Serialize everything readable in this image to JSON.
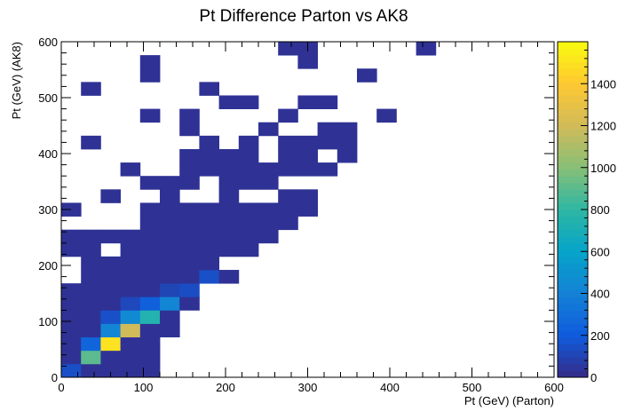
{
  "chart_data": {
    "type": "heatmap",
    "title": "Pt Difference Parton vs AK8",
    "xlabel": "Pt (GeV) (Parton)",
    "ylabel": "Pt (GeV) (AK8)",
    "xlim": [
      0,
      600
    ],
    "ylim": [
      0,
      600
    ],
    "bin_width": 24,
    "x_ticks": [
      "0",
      "100",
      "200",
      "300",
      "400",
      "500",
      "600"
    ],
    "y_ticks": [
      "0",
      "100",
      "200",
      "300",
      "400",
      "500",
      "600"
    ],
    "colorbar": {
      "range": [
        0,
        1600
      ],
      "ticks": [
        "0",
        "200",
        "400",
        "600",
        "800",
        "1000",
        "1200",
        "1400"
      ],
      "palette": [
        "#352a87",
        "#0f5cdd",
        "#1481d6",
        "#06a4ca",
        "#2eb7a4",
        "#87bf77",
        "#d1bb59",
        "#fec832",
        "#f9fb0e"
      ]
    },
    "bins": [
      [
        0,
        0,
        150
      ],
      [
        24,
        0,
        30
      ],
      [
        48,
        0,
        30
      ],
      [
        72,
        0,
        30
      ],
      [
        96,
        0,
        30
      ],
      [
        0,
        24,
        30
      ],
      [
        24,
        24,
        900
      ],
      [
        48,
        24,
        30
      ],
      [
        72,
        24,
        30
      ],
      [
        96,
        24,
        30
      ],
      [
        0,
        48,
        30
      ],
      [
        24,
        48,
        250
      ],
      [
        48,
        48,
        1500
      ],
      [
        72,
        48,
        30
      ],
      [
        96,
        48,
        30
      ],
      [
        0,
        72,
        30
      ],
      [
        24,
        72,
        30
      ],
      [
        48,
        72,
        420
      ],
      [
        72,
        72,
        1200
      ],
      [
        96,
        72,
        30
      ],
      [
        120,
        72,
        30
      ],
      [
        0,
        96,
        30
      ],
      [
        24,
        96,
        30
      ],
      [
        48,
        96,
        150
      ],
      [
        72,
        96,
        450
      ],
      [
        96,
        96,
        750
      ],
      [
        120,
        96,
        30
      ],
      [
        0,
        120,
        30
      ],
      [
        24,
        120,
        30
      ],
      [
        48,
        120,
        30
      ],
      [
        72,
        120,
        120
      ],
      [
        96,
        120,
        220
      ],
      [
        120,
        120,
        420
      ],
      [
        144,
        120,
        30
      ],
      [
        0,
        144,
        30
      ],
      [
        24,
        144,
        30
      ],
      [
        48,
        144,
        30
      ],
      [
        72,
        144,
        30
      ],
      [
        96,
        144,
        30
      ],
      [
        120,
        144,
        110
      ],
      [
        144,
        144,
        140
      ],
      [
        24,
        168,
        30
      ],
      [
        48,
        168,
        30
      ],
      [
        72,
        168,
        30
      ],
      [
        96,
        168,
        30
      ],
      [
        120,
        168,
        30
      ],
      [
        144,
        168,
        30
      ],
      [
        168,
        168,
        150
      ],
      [
        192,
        168,
        30
      ],
      [
        24,
        192,
        30
      ],
      [
        48,
        192,
        30
      ],
      [
        72,
        192,
        30
      ],
      [
        96,
        192,
        30
      ],
      [
        120,
        192,
        30
      ],
      [
        144,
        192,
        30
      ],
      [
        168,
        192,
        30
      ],
      [
        0,
        216,
        30
      ],
      [
        24,
        216,
        30
      ],
      [
        72,
        216,
        30
      ],
      [
        96,
        216,
        30
      ],
      [
        120,
        216,
        30
      ],
      [
        144,
        216,
        30
      ],
      [
        168,
        216,
        30
      ],
      [
        192,
        216,
        30
      ],
      [
        216,
        216,
        30
      ],
      [
        0,
        240,
        30
      ],
      [
        24,
        240,
        30
      ],
      [
        48,
        240,
        30
      ],
      [
        72,
        240,
        30
      ],
      [
        96,
        240,
        30
      ],
      [
        120,
        240,
        30
      ],
      [
        144,
        240,
        30
      ],
      [
        168,
        240,
        30
      ],
      [
        192,
        240,
        30
      ],
      [
        216,
        240,
        30
      ],
      [
        240,
        240,
        30
      ],
      [
        96,
        264,
        30
      ],
      [
        120,
        264,
        30
      ],
      [
        144,
        264,
        30
      ],
      [
        168,
        264,
        30
      ],
      [
        192,
        264,
        30
      ],
      [
        216,
        264,
        30
      ],
      [
        240,
        264,
        30
      ],
      [
        264,
        264,
        30
      ],
      [
        0,
        288,
        30
      ],
      [
        96,
        288,
        30
      ],
      [
        120,
        288,
        30
      ],
      [
        144,
        288,
        30
      ],
      [
        168,
        288,
        30
      ],
      [
        192,
        288,
        30
      ],
      [
        216,
        288,
        30
      ],
      [
        240,
        288,
        30
      ],
      [
        264,
        288,
        30
      ],
      [
        288,
        288,
        30
      ],
      [
        48,
        312,
        30
      ],
      [
        120,
        312,
        30
      ],
      [
        192,
        312,
        30
      ],
      [
        264,
        312,
        30
      ],
      [
        288,
        312,
        30
      ],
      [
        96,
        336,
        30
      ],
      [
        120,
        336,
        30
      ],
      [
        144,
        336,
        30
      ],
      [
        192,
        336,
        30
      ],
      [
        216,
        336,
        30
      ],
      [
        240,
        336,
        30
      ],
      [
        72,
        360,
        30
      ],
      [
        144,
        360,
        30
      ],
      [
        168,
        360,
        30
      ],
      [
        192,
        360,
        30
      ],
      [
        216,
        360,
        30
      ],
      [
        240,
        360,
        30
      ],
      [
        264,
        360,
        30
      ],
      [
        288,
        360,
        30
      ],
      [
        312,
        360,
        30
      ],
      [
        144,
        384,
        30
      ],
      [
        168,
        384,
        30
      ],
      [
        192,
        384,
        30
      ],
      [
        216,
        384,
        30
      ],
      [
        264,
        384,
        30
      ],
      [
        288,
        384,
        30
      ],
      [
        336,
        384,
        30
      ],
      [
        24,
        408,
        30
      ],
      [
        168,
        408,
        30
      ],
      [
        216,
        408,
        30
      ],
      [
        264,
        408,
        30
      ],
      [
        288,
        408,
        30
      ],
      [
        312,
        408,
        30
      ],
      [
        336,
        408,
        30
      ],
      [
        144,
        432,
        30
      ],
      [
        240,
        432,
        30
      ],
      [
        312,
        432,
        30
      ],
      [
        336,
        432,
        30
      ],
      [
        96,
        456,
        30
      ],
      [
        144,
        456,
        30
      ],
      [
        264,
        456,
        30
      ],
      [
        384,
        456,
        30
      ],
      [
        192,
        480,
        30
      ],
      [
        216,
        480,
        30
      ],
      [
        288,
        480,
        30
      ],
      [
        312,
        480,
        30
      ],
      [
        24,
        504,
        30
      ],
      [
        168,
        504,
        30
      ],
      [
        96,
        528,
        30
      ],
      [
        360,
        528,
        30
      ],
      [
        96,
        552,
        30
      ],
      [
        288,
        552,
        30
      ],
      [
        264,
        576,
        30
      ],
      [
        288,
        576,
        30
      ],
      [
        432,
        576,
        30
      ]
    ]
  }
}
